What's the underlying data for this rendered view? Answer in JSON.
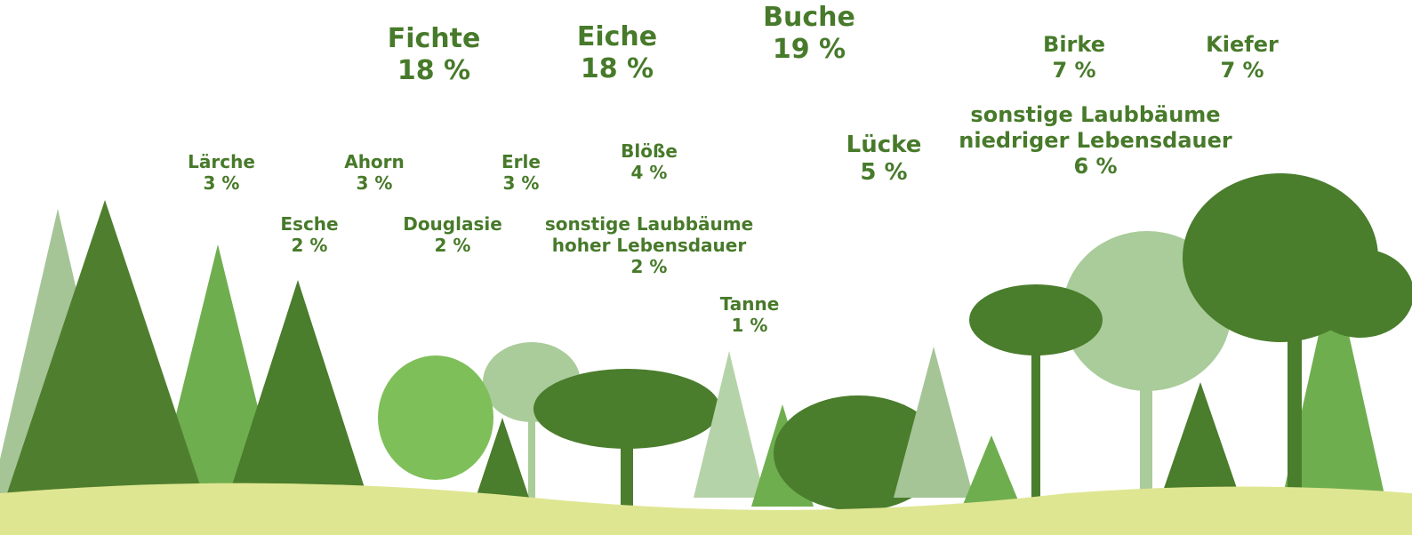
{
  "items": [
    {
      "name": [
        "Fichte"
      ],
      "share": "18 %"
    },
    {
      "name": [
        "Eiche"
      ],
      "share": "18 %"
    },
    {
      "name": [
        "Buche"
      ],
      "share": "19 %"
    },
    {
      "name": [
        "Birke"
      ],
      "share": "7 %"
    },
    {
      "name": [
        "Kiefer"
      ],
      "share": "7 %"
    },
    {
      "name": [
        "sonstige Laubbäume",
        "niedriger Lebensdauer"
      ],
      "share": "6 %"
    },
    {
      "name": [
        "Lücke"
      ],
      "share": "5 %"
    },
    {
      "name": [
        "Lärche"
      ],
      "share": "3 %"
    },
    {
      "name": [
        "Ahorn"
      ],
      "share": "3 %"
    },
    {
      "name": [
        "Erle"
      ],
      "share": "3 %"
    },
    {
      "name": [
        "Blöße"
      ],
      "share": "4 %"
    },
    {
      "name": [
        "Esche"
      ],
      "share": "2 %"
    },
    {
      "name": [
        "Douglasie"
      ],
      "share": "2 %"
    },
    {
      "name": [
        "sonstige Laubbäume",
        "hoher Lebensdauer"
      ],
      "share": "2 %"
    },
    {
      "name": [
        "Tanne"
      ],
      "share": "1 %"
    }
  ]
}
